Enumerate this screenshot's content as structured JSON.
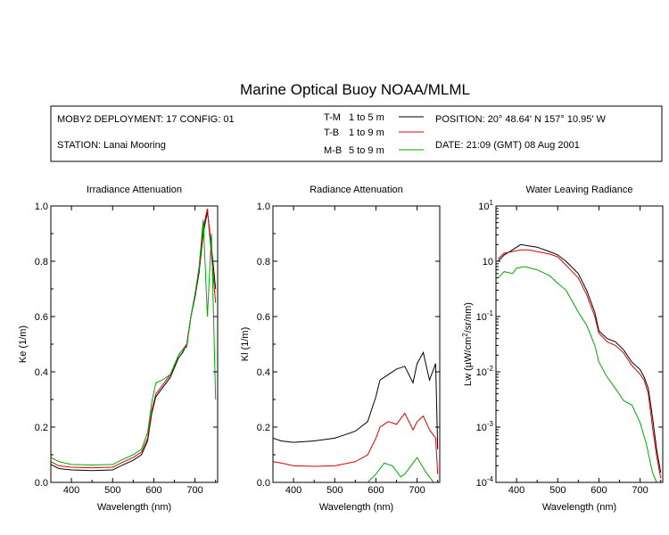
{
  "title": "Marine Optical Buoy NOAA/MLML",
  "info": {
    "deployment": "MOBY2 DEPLOYMENT: 17 CONFIG: 01",
    "station": "STATION: Lanai Mooring",
    "position": "POSITION: 20° 48.64' N   157° 10.95' W",
    "date": "DATE: 21:09 (GMT) 08 Aug 2001",
    "legend": [
      {
        "code": "T-M",
        "range": "1 to 5  m",
        "color": "#000000"
      },
      {
        "code": "T-B",
        "range": "1 to 9  m",
        "color": "#dd0000"
      },
      {
        "code": "M-B",
        "range": "5 to 9  m",
        "color": "#00aa00"
      }
    ]
  },
  "chart_data": [
    {
      "type": "line",
      "title": "Irradiance Attenuation",
      "xlabel": "Wavelength (nm)",
      "ylabel": "Ke  (1/m)",
      "xlim": [
        350,
        755
      ],
      "ylim": [
        0,
        1
      ],
      "xticks": [
        400,
        500,
        600,
        700
      ],
      "yticks": [
        0.0,
        0.2,
        0.4,
        0.6,
        0.8,
        1.0
      ],
      "ytick_labels": [
        "0.0",
        "0.2",
        "0.4",
        "0.6",
        "0.8",
        "1.0"
      ],
      "series": [
        {
          "name": "T-M",
          "color": "#000000",
          "x": [
            350,
            370,
            400,
            450,
            500,
            520,
            550,
            570,
            585,
            595,
            605,
            620,
            640,
            660,
            670,
            680,
            690,
            700,
            710,
            720,
            730,
            740,
            750
          ],
          "y": [
            0.065,
            0.05,
            0.045,
            0.043,
            0.045,
            0.06,
            0.08,
            0.1,
            0.15,
            0.25,
            0.31,
            0.34,
            0.38,
            0.45,
            0.47,
            0.5,
            0.6,
            0.67,
            0.76,
            0.9,
            0.98,
            0.85,
            0.7
          ]
        },
        {
          "name": "T-B",
          "color": "#dd0000",
          "x": [
            350,
            370,
            400,
            450,
            500,
            520,
            550,
            570,
            585,
            595,
            605,
            620,
            640,
            660,
            670,
            680,
            690,
            700,
            710,
            720,
            730,
            740,
            750
          ],
          "y": [
            0.075,
            0.06,
            0.055,
            0.053,
            0.055,
            0.07,
            0.09,
            0.11,
            0.16,
            0.26,
            0.32,
            0.35,
            0.39,
            0.46,
            0.48,
            0.5,
            0.6,
            0.68,
            0.77,
            0.92,
            0.99,
            0.82,
            0.65
          ]
        },
        {
          "name": "M-B",
          "color": "#00aa00",
          "x": [
            350,
            370,
            400,
            450,
            500,
            520,
            550,
            570,
            585,
            595,
            605,
            620,
            640,
            660,
            670,
            680,
            690,
            700,
            710,
            720,
            730,
            740,
            750
          ],
          "y": [
            0.09,
            0.075,
            0.065,
            0.063,
            0.065,
            0.08,
            0.1,
            0.12,
            0.18,
            0.29,
            0.36,
            0.37,
            0.39,
            0.46,
            0.48,
            0.49,
            0.6,
            0.68,
            0.78,
            0.95,
            0.6,
            0.9,
            0.3
          ]
        }
      ]
    },
    {
      "type": "line",
      "title": "Radiance Attenuation",
      "xlabel": "Wavelength (nm)",
      "ylabel": "Kl  (1/m)",
      "xlim": [
        350,
        755
      ],
      "ylim": [
        0,
        1
      ],
      "xticks": [
        400,
        500,
        600,
        700
      ],
      "yticks": [
        0.0,
        0.2,
        0.4,
        0.6,
        0.8,
        1.0
      ],
      "ytick_labels": [
        "0.0",
        "0.2",
        "0.4",
        "0.6",
        "0.8",
        "1.0"
      ],
      "series": [
        {
          "name": "T-M",
          "color": "#000000",
          "x": [
            350,
            370,
            400,
            450,
            500,
            550,
            580,
            600,
            610,
            630,
            650,
            670,
            690,
            700,
            715,
            730,
            745,
            750
          ],
          "y": [
            0.16,
            0.15,
            0.145,
            0.15,
            0.16,
            0.185,
            0.22,
            0.31,
            0.37,
            0.39,
            0.41,
            0.42,
            0.36,
            0.43,
            0.47,
            0.37,
            0.43,
            0.12
          ]
        },
        {
          "name": "T-B",
          "color": "#dd0000",
          "x": [
            350,
            370,
            400,
            450,
            500,
            550,
            580,
            600,
            610,
            630,
            650,
            670,
            690,
            700,
            715,
            730,
            745,
            750
          ],
          "y": [
            0.075,
            0.07,
            0.06,
            0.058,
            0.06,
            0.075,
            0.1,
            0.16,
            0.2,
            0.22,
            0.21,
            0.25,
            0.19,
            0.22,
            0.24,
            0.19,
            0.16,
            0.03
          ]
        },
        {
          "name": "M-B",
          "color": "#00aa00",
          "x": [
            580,
            600,
            620,
            640,
            660,
            670,
            690,
            700,
            720,
            740,
            750
          ],
          "y": [
            0.0,
            0.03,
            0.07,
            0.06,
            0.02,
            0.03,
            0.07,
            0.09,
            0.04,
            0.0,
            0.0
          ]
        }
      ]
    },
    {
      "type": "line",
      "title": "Water Leaving Radiance",
      "xlabel": "Wavelength (nm)",
      "ylabel": "Lw  (µW/cm2/sr/nm)",
      "yscale": "log",
      "xlim": [
        350,
        755
      ],
      "ylim": [
        0.0001,
        10
      ],
      "xticks": [
        400,
        500,
        600,
        700
      ],
      "yticks": [
        0.0001,
        0.001,
        0.01,
        0.1,
        1,
        10
      ],
      "ytick_labels": [
        "10-4",
        "10-3",
        "10-2",
        "10-1",
        "10",
        "101"
      ],
      "series": [
        {
          "name": "T-M",
          "color": "#000000",
          "x": [
            355,
            370,
            390,
            410,
            430,
            450,
            480,
            500,
            520,
            550,
            570,
            590,
            600,
            620,
            640,
            660,
            680,
            700,
            710,
            720,
            730,
            740,
            750
          ],
          "y": [
            1.0,
            1.3,
            1.6,
            2.0,
            1.9,
            1.8,
            1.5,
            1.3,
            1.0,
            0.6,
            0.3,
            0.12,
            0.055,
            0.04,
            0.035,
            0.025,
            0.015,
            0.011,
            0.008,
            0.005,
            0.0015,
            0.0004,
            0.00015
          ]
        },
        {
          "name": "T-B",
          "color": "#dd0000",
          "x": [
            355,
            370,
            390,
            410,
            430,
            450,
            480,
            500,
            520,
            550,
            570,
            590,
            600,
            620,
            640,
            660,
            680,
            700,
            710,
            720,
            730,
            740,
            750
          ],
          "y": [
            1.1,
            1.4,
            1.5,
            1.6,
            1.6,
            1.5,
            1.35,
            1.2,
            0.85,
            0.5,
            0.25,
            0.1,
            0.05,
            0.035,
            0.03,
            0.022,
            0.013,
            0.009,
            0.007,
            0.004,
            0.001,
            0.0003,
            0.00012
          ]
        },
        {
          "name": "M-B",
          "color": "#00aa00",
          "x": [
            355,
            370,
            390,
            400,
            420,
            450,
            480,
            500,
            520,
            550,
            570,
            590,
            600,
            620,
            640,
            660,
            680,
            700,
            715,
            730,
            740
          ],
          "y": [
            0.5,
            0.65,
            0.6,
            0.75,
            0.8,
            0.7,
            0.55,
            0.4,
            0.3,
            0.12,
            0.07,
            0.03,
            0.015,
            0.008,
            0.005,
            0.003,
            0.0025,
            0.0012,
            0.0005,
            0.00015,
            0.0001
          ]
        }
      ]
    }
  ]
}
